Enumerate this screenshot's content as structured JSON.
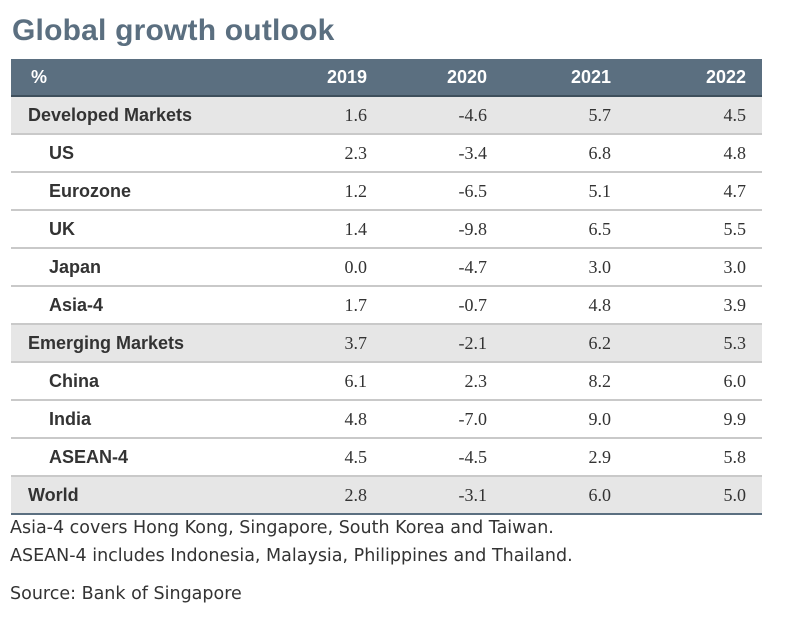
{
  "title": "Global growth outlook",
  "chart_data": {
    "type": "table",
    "title": "Global growth outlook",
    "columns": [
      "%",
      "2019",
      "2020",
      "2021",
      "2022"
    ],
    "rows": [
      {
        "label": "Developed Markets",
        "level": "major",
        "values": [
          "1.6",
          "-4.6",
          "5.7",
          "4.5"
        ]
      },
      {
        "label": "US",
        "level": "sub",
        "values": [
          "2.3",
          "-3.4",
          "6.8",
          "4.8"
        ]
      },
      {
        "label": "Eurozone",
        "level": "sub",
        "values": [
          "1.2",
          "-6.5",
          "5.1",
          "4.7"
        ]
      },
      {
        "label": "UK",
        "level": "sub",
        "values": [
          "1.4",
          "-9.8",
          "6.5",
          "5.5"
        ]
      },
      {
        "label": "Japan",
        "level": "sub",
        "values": [
          "0.0",
          "-4.7",
          "3.0",
          "3.0"
        ]
      },
      {
        "label": "Asia-4",
        "level": "sub",
        "values": [
          "1.7",
          "-0.7",
          "4.8",
          "3.9"
        ]
      },
      {
        "label": "Emerging Markets",
        "level": "major",
        "values": [
          "3.7",
          "-2.1",
          "6.2",
          "5.3"
        ]
      },
      {
        "label": "China",
        "level": "sub",
        "values": [
          "6.1",
          "2.3",
          "8.2",
          "6.0"
        ]
      },
      {
        "label": "India",
        "level": "sub",
        "values": [
          "4.8",
          "-7.0",
          "9.0",
          "9.9"
        ]
      },
      {
        "label": "ASEAN-4",
        "level": "sub",
        "values": [
          "4.5",
          "-4.5",
          "2.9",
          "5.8"
        ]
      },
      {
        "label": "World",
        "level": "major",
        "values": [
          "2.8",
          "-3.1",
          "6.0",
          "5.0"
        ]
      }
    ]
  },
  "notes": [
    "Asia-4 covers Hong Kong, Singapore, South Korea and Taiwan.",
    "ASEAN-4 includes Indonesia, Malaysia, Philippines and Thailand."
  ],
  "source": "Source: Bank of Singapore",
  "colors": {
    "header_bg": "#5b6f80",
    "title": "#5b6f80",
    "major_row_bg": "#e6e6e6"
  }
}
